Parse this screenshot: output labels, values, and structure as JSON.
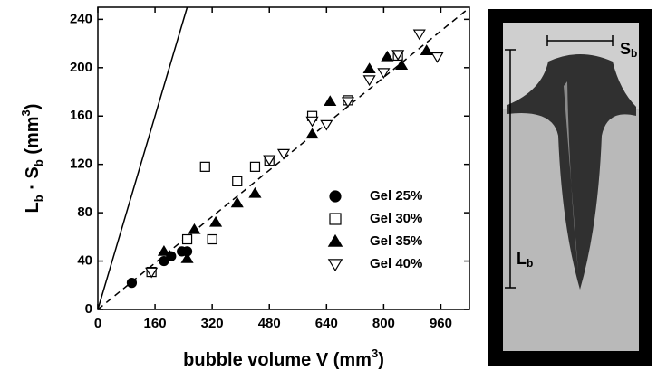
{
  "chart_data": {
    "type": "scatter",
    "xlabel": [
      "bubble volume V (mm",
      "3",
      ")"
    ],
    "ylabel": [
      "L",
      "b",
      " · S",
      "b",
      " (mm",
      "3",
      ")"
    ],
    "xlim": [
      0,
      1040
    ],
    "ylim": [
      0,
      250
    ],
    "xticks": [
      0,
      160,
      320,
      480,
      640,
      800,
      960
    ],
    "yticks": [
      0,
      40,
      80,
      120,
      160,
      200,
      240
    ],
    "lines": [
      {
        "slope": 1,
        "style": "solid"
      },
      {
        "slope": 0.24,
        "style": "dashed"
      }
    ],
    "series": [
      {
        "name": "Gel 25%",
        "marker": "circle",
        "filled": true,
        "color": "#000000",
        "x": [
          95,
          185,
          205,
          235,
          250
        ],
        "values": [
          22,
          40,
          44,
          48,
          48
        ]
      },
      {
        "name": "Gel 30%",
        "marker": "square",
        "filled": false,
        "color": "#000000",
        "x": [
          150,
          300,
          320,
          250,
          390,
          440,
          480,
          600,
          700,
          840
        ],
        "values": [
          31,
          118,
          58,
          58,
          106,
          118,
          123,
          160,
          173,
          210
        ]
      },
      {
        "name": "Gel 35%",
        "marker": "triangle",
        "filled": true,
        "color": "#000000",
        "x": [
          185,
          250,
          270,
          330,
          390,
          440,
          600,
          650,
          760,
          810,
          850,
          920
        ],
        "values": [
          48,
          42,
          66,
          72,
          88,
          96,
          145,
          172,
          199,
          209,
          202,
          214
        ]
      },
      {
        "name": "Gel 40%",
        "marker": "triangle-down",
        "filled": false,
        "color": "#000000",
        "x": [
          150,
          480,
          520,
          600,
          640,
          700,
          760,
          800,
          840,
          900,
          950
        ],
        "values": [
          31,
          124,
          129,
          156,
          153,
          172,
          190,
          196,
          211,
          228,
          209
        ]
      }
    ]
  },
  "photo": {
    "width_label": [
      "S",
      "b"
    ],
    "length_label": [
      "L",
      "b"
    ]
  }
}
